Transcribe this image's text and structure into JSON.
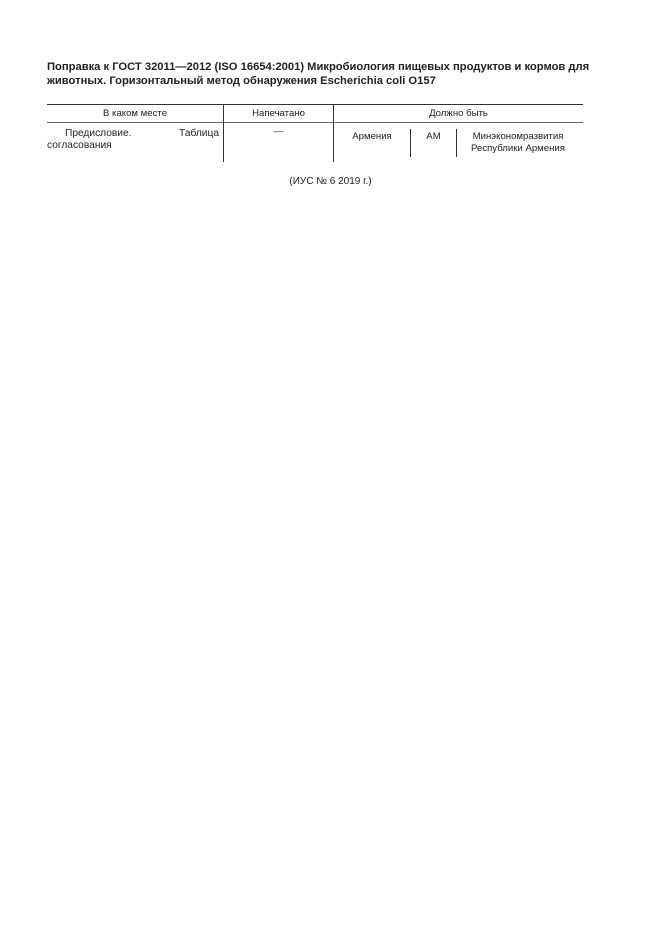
{
  "document": {
    "title": "Поправка к ГОСТ 32011—2012 (ISO 16654:2001) Микробиология пищевых продуктов и кормов для животных. Горизонтальный метод обнаружения Escherichia coli O157",
    "table": {
      "headers": [
        "В каком месте",
        "Напечатано",
        "Должно быть"
      ],
      "row": {
        "place": "Предисловие. Таблица согласования",
        "printed": "—",
        "should_be": [
          "Армения",
          "AM",
          "Минэкономразвития Республики Армения"
        ]
      }
    },
    "footer": "(ИУС № 6  2019 г.)"
  }
}
